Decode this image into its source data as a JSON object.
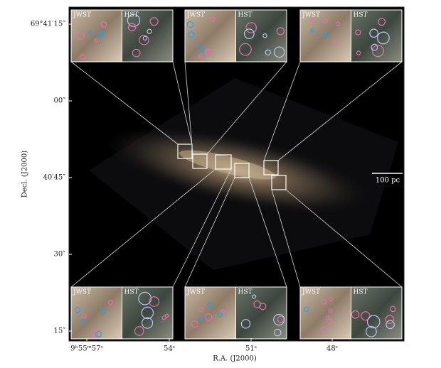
{
  "figure": {
    "y_axis": {
      "label": "Decl. (J2000)",
      "ticks": [
        "69°41′15″",
        "00″",
        "40′45″",
        "30″",
        "15″"
      ]
    },
    "x_axis": {
      "label": "R.A. (J2000)",
      "ticks": [
        "9ʰ55ᵐ57ˢ",
        "54ˢ",
        "51ˢ",
        "48ˢ"
      ]
    },
    "scale_bar": "100 pc",
    "insets": [
      {
        "left": "JWST",
        "right": "HST"
      },
      {
        "left": "JWST",
        "right": "HST"
      },
      {
        "left": "JWST",
        "right": "HST"
      },
      {
        "left": "JWST",
        "right": "HST"
      },
      {
        "left": "JWST",
        "right": "HST"
      },
      {
        "left": "JWST",
        "right": "HST"
      }
    ]
  }
}
